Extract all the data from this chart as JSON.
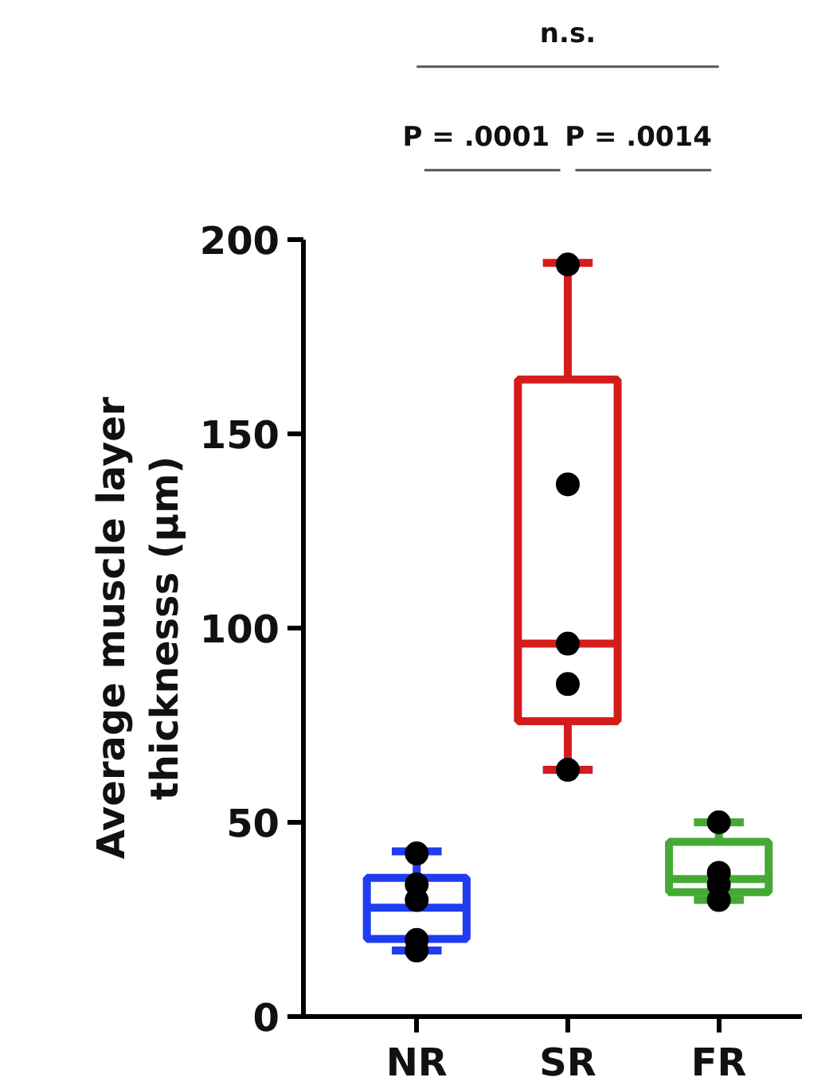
{
  "chart_data": {
    "type": "box",
    "ylabel": "Average muscle layer\nthicknesss (μm)",
    "categories": [
      "NR",
      "SR",
      "FR"
    ],
    "colors": [
      "#1f3cf0",
      "#d41c1c",
      "#44aa33"
    ],
    "boxes": [
      {
        "low": 17,
        "q1": 20,
        "median": 28,
        "q3": 35.7,
        "high": 42.5
      },
      {
        "low": 63.5,
        "q1": 76,
        "median": 96,
        "q3": 164,
        "high": 194
      },
      {
        "low": 30,
        "q1": 32,
        "median": 35.4,
        "q3": 45,
        "high": 50
      }
    ],
    "series": [
      {
        "type": "scatter",
        "color": "#000000",
        "x": [
          "NR",
          "NR",
          "NR",
          "NR",
          "NR",
          "SR",
          "SR",
          "SR",
          "SR",
          "SR",
          "FR",
          "FR",
          "FR",
          "FR"
        ],
        "values": [
          42,
          34,
          30,
          19.7,
          17,
          193.6,
          137,
          96,
          85.6,
          63.5,
          50,
          37,
          34,
          30
        ]
      }
    ],
    "marker": "circle",
    "ylim": [
      0,
      200
    ],
    "yticks": [
      0,
      50,
      100,
      150,
      200
    ],
    "grid": false,
    "annotations": [
      "n.s.",
      "P = .0001",
      "P = .0014"
    ]
  }
}
